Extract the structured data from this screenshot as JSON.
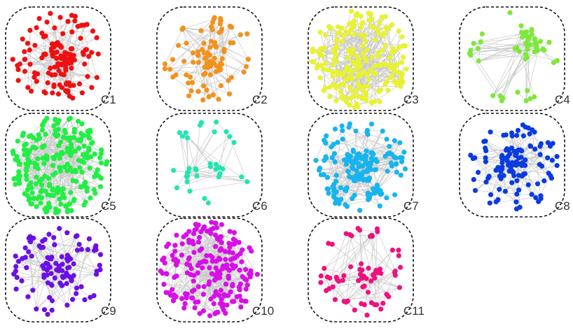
{
  "clusters": [
    {
      "label": "C1",
      "color": "#ee1111",
      "nodes": 140,
      "structure": "dense-core-with-ring"
    },
    {
      "label": "C2",
      "color": "#f2921e",
      "nodes": 90,
      "structure": "dense-core-with-ring"
    },
    {
      "label": "C3",
      "color": "#e8f232",
      "nodes": 220,
      "structure": "dense-ball"
    },
    {
      "label": "C4",
      "color": "#7ee83a",
      "nodes": 55,
      "structure": "sparse-subgroups"
    },
    {
      "label": "C5",
      "color": "#22ee44",
      "nodes": 240,
      "structure": "dense-ball"
    },
    {
      "label": "C6",
      "color": "#22e6b0",
      "nodes": 35,
      "structure": "sparse-subgroups"
    },
    {
      "label": "C7",
      "color": "#18b4ee",
      "nodes": 180,
      "structure": "dense-core-with-ring"
    },
    {
      "label": "C8",
      "color": "#0a3be0",
      "nodes": 120,
      "structure": "dense-core-with-ring"
    },
    {
      "label": "C9",
      "color": "#6a10e6",
      "nodes": 110,
      "structure": "dense-core-with-ring"
    },
    {
      "label": "C10",
      "color": "#d610e6",
      "nodes": 210,
      "structure": "dense-ball"
    },
    {
      "label": "C11",
      "color": "#ec127f",
      "nodes": 70,
      "structure": "sparse-subgroups"
    }
  ]
}
